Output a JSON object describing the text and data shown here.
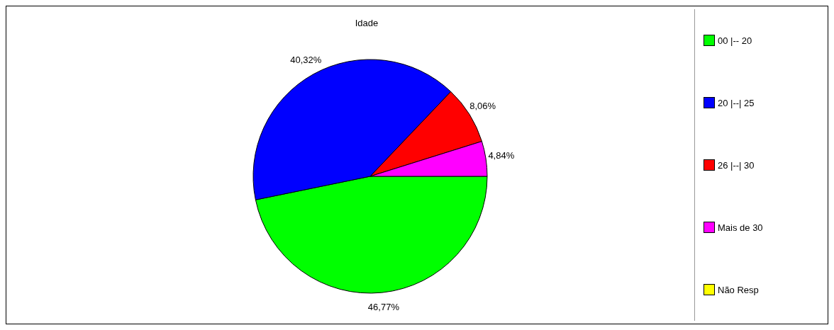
{
  "chart_data": {
    "type": "pie",
    "title": "Idade",
    "categories": [
      "00 |-- 20",
      "20 |--| 25",
      "26 |--| 30",
      "Mais de 30",
      "Não Resp"
    ],
    "values": [
      46.77,
      40.32,
      8.06,
      4.84,
      0
    ],
    "colors": [
      "#00ff00",
      "#0000ff",
      "#ff0000",
      "#ff00ff",
      "#ffff00"
    ],
    "value_labels": [
      "46,77%",
      "40,32%",
      "8,06%",
      "4,84%",
      null
    ],
    "legend": "right"
  }
}
